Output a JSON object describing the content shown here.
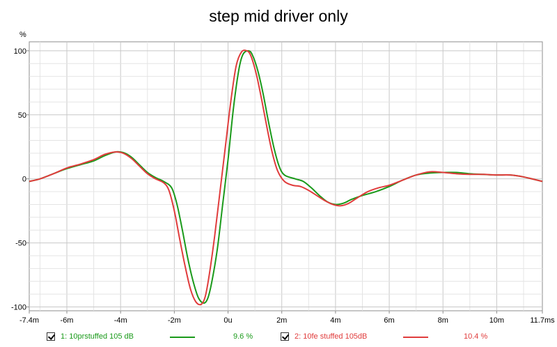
{
  "chart_data": {
    "type": "line",
    "title": "step mid driver only",
    "ylabel": "%",
    "xlabel": "",
    "xlim": [
      -7.4,
      11.7
    ],
    "ylim": [
      -103,
      107
    ],
    "x_ticks": [
      {
        "value": -7.4,
        "label": "-7.4m"
      },
      {
        "value": -6,
        "label": "-6m"
      },
      {
        "value": -4,
        "label": "-4m"
      },
      {
        "value": -2,
        "label": "-2m"
      },
      {
        "value": 0,
        "label": "0u"
      },
      {
        "value": 2,
        "label": "2m"
      },
      {
        "value": 4,
        "label": "4m"
      },
      {
        "value": 6,
        "label": "6m"
      },
      {
        "value": 8,
        "label": "8m"
      },
      {
        "value": 10,
        "label": "10m"
      },
      {
        "value": 11.7,
        "label": "11.7ms"
      }
    ],
    "y_ticks": [
      {
        "value": 100,
        "label": "100"
      },
      {
        "value": 50,
        "label": "50"
      },
      {
        "value": 0,
        "label": "0"
      },
      {
        "value": -50,
        "label": "-50"
      },
      {
        "value": -100,
        "label": "-100"
      }
    ],
    "grid": true,
    "series": [
      {
        "name": "1: 10prstuffed 105 dB",
        "value": "9.6 %",
        "color": "#1a9a1a",
        "points": [
          [
            -7.4,
            -2
          ],
          [
            -7,
            0
          ],
          [
            -6.5,
            4
          ],
          [
            -6,
            8
          ],
          [
            -5.5,
            11
          ],
          [
            -5,
            14
          ],
          [
            -4.6,
            18
          ],
          [
            -4.2,
            21
          ],
          [
            -3.9,
            20.5
          ],
          [
            -3.6,
            17
          ],
          [
            -3.3,
            11
          ],
          [
            -3,
            5
          ],
          [
            -2.7,
            1
          ],
          [
            -2.4,
            -2
          ],
          [
            -2.1,
            -7
          ],
          [
            -1.9,
            -20
          ],
          [
            -1.7,
            -40
          ],
          [
            -1.5,
            -62
          ],
          [
            -1.3,
            -80
          ],
          [
            -1.1,
            -93
          ],
          [
            -0.9,
            -97
          ],
          [
            -0.75,
            -93
          ],
          [
            -0.6,
            -80
          ],
          [
            -0.4,
            -55
          ],
          [
            -0.2,
            -20
          ],
          [
            0,
            15
          ],
          [
            0.2,
            55
          ],
          [
            0.4,
            85
          ],
          [
            0.55,
            97
          ],
          [
            0.75,
            100
          ],
          [
            0.9,
            97
          ],
          [
            1.1,
            85
          ],
          [
            1.3,
            67
          ],
          [
            1.5,
            45
          ],
          [
            1.7,
            25
          ],
          [
            1.9,
            10
          ],
          [
            2.1,
            3
          ],
          [
            2.5,
            0
          ],
          [
            2.8,
            -2
          ],
          [
            3.1,
            -7
          ],
          [
            3.4,
            -13
          ],
          [
            3.7,
            -18
          ],
          [
            4,
            -20
          ],
          [
            4.3,
            -19
          ],
          [
            4.6,
            -16
          ],
          [
            5,
            -13
          ],
          [
            5.5,
            -10
          ],
          [
            6,
            -6
          ],
          [
            6.5,
            -1
          ],
          [
            7,
            3
          ],
          [
            7.5,
            4.5
          ],
          [
            8,
            5
          ],
          [
            8.5,
            5
          ],
          [
            9,
            4
          ],
          [
            9.5,
            3.5
          ],
          [
            10,
            3
          ],
          [
            10.5,
            3
          ],
          [
            11,
            1.5
          ],
          [
            11.7,
            -2
          ]
        ]
      },
      {
        "name": "2: 10fe stuffed 105dB",
        "value": "10.4 %",
        "color": "#e03c3c",
        "points": [
          [
            -7.4,
            -2
          ],
          [
            -7,
            0
          ],
          [
            -6.5,
            4
          ],
          [
            -6,
            8.5
          ],
          [
            -5.5,
            11.5
          ],
          [
            -5,
            15
          ],
          [
            -4.6,
            19
          ],
          [
            -4.2,
            21
          ],
          [
            -3.9,
            20
          ],
          [
            -3.6,
            16
          ],
          [
            -3.3,
            10
          ],
          [
            -3,
            4
          ],
          [
            -2.7,
            0
          ],
          [
            -2.4,
            -3
          ],
          [
            -2.2,
            -9
          ],
          [
            -2,
            -25
          ],
          [
            -1.8,
            -47
          ],
          [
            -1.6,
            -68
          ],
          [
            -1.4,
            -86
          ],
          [
            -1.2,
            -96
          ],
          [
            -1,
            -98
          ],
          [
            -0.85,
            -92
          ],
          [
            -0.7,
            -75
          ],
          [
            -0.5,
            -45
          ],
          [
            -0.3,
            -10
          ],
          [
            -0.1,
            25
          ],
          [
            0.1,
            60
          ],
          [
            0.3,
            88
          ],
          [
            0.5,
            99
          ],
          [
            0.7,
            100
          ],
          [
            0.85,
            96
          ],
          [
            1.05,
            82
          ],
          [
            1.25,
            62
          ],
          [
            1.45,
            40
          ],
          [
            1.65,
            20
          ],
          [
            1.85,
            6
          ],
          [
            2.1,
            -2
          ],
          [
            2.4,
            -5
          ],
          [
            2.7,
            -6
          ],
          [
            3,
            -9
          ],
          [
            3.3,
            -13
          ],
          [
            3.6,
            -17
          ],
          [
            3.9,
            -20
          ],
          [
            4.2,
            -21
          ],
          [
            4.5,
            -19
          ],
          [
            4.8,
            -15
          ],
          [
            5.2,
            -10
          ],
          [
            5.6,
            -7
          ],
          [
            6,
            -5
          ],
          [
            6.5,
            -1
          ],
          [
            7,
            3
          ],
          [
            7.5,
            5.5
          ],
          [
            8,
            5
          ],
          [
            8.5,
            4
          ],
          [
            9,
            3.5
          ],
          [
            9.5,
            3.5
          ],
          [
            10,
            3
          ],
          [
            10.5,
            3
          ],
          [
            11,
            1.5
          ],
          [
            11.7,
            -2
          ]
        ]
      }
    ]
  }
}
